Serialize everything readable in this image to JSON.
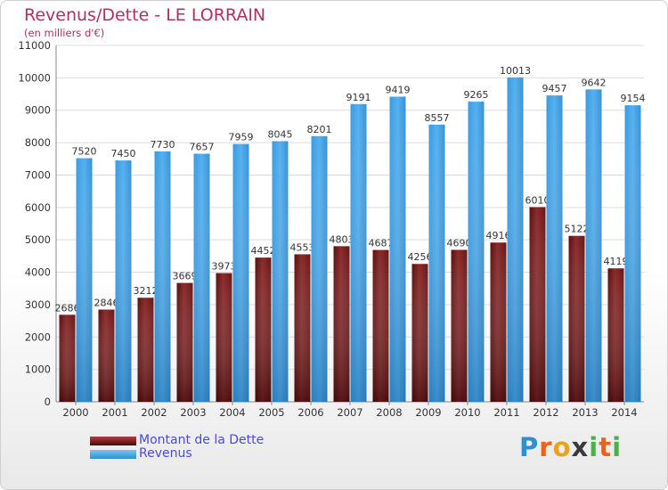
{
  "header": {
    "title": "Revenus/Dette - LE LORRAIN",
    "subtitle": "(en milliers d'€)"
  },
  "chart_data": {
    "type": "bar",
    "title": "Revenus/Dette - LE LORRAIN",
    "ylabel": "(en milliers d'€)",
    "xlabel": "",
    "categories": [
      "2000",
      "2001",
      "2002",
      "2003",
      "2004",
      "2005",
      "2006",
      "2007",
      "2008",
      "2009",
      "2010",
      "2011",
      "2012",
      "2013",
      "2014"
    ],
    "series": [
      {
        "name": "Montant de la Dette",
        "color": "#7a1a1a",
        "values": [
          2686,
          2846,
          3212,
          3669,
          3973,
          4452,
          4553,
          4803,
          4687,
          4256,
          4690,
          4916,
          6010,
          5122,
          4119
        ],
        "labels": [
          "2686",
          "2846",
          "3212",
          "3669",
          "3973",
          "4452",
          "4553",
          "4803",
          "4687",
          "4256",
          "4690",
          "4916",
          "6010",
          "5122",
          "4119"
        ]
      },
      {
        "name": "Revenus",
        "color": "#3f9fe0",
        "values": [
          7520,
          7450,
          7730,
          7657,
          7959,
          8045,
          8201,
          9191,
          9419,
          8557,
          9265,
          10013,
          9457,
          9642,
          9154
        ],
        "labels": [
          "7520",
          "7450",
          "7730",
          "7657",
          "7959",
          "8045",
          "8201",
          "9191",
          "9419",
          "8557",
          "9265",
          "10013",
          "9457",
          "9642",
          "9154"
        ]
      }
    ],
    "ylim": [
      0,
      11000
    ],
    "yticks": [
      0,
      1000,
      2000,
      3000,
      4000,
      5000,
      6000,
      7000,
      8000,
      9000,
      10000,
      11000
    ],
    "grid": true,
    "legend": "bottom-left"
  },
  "legend": {
    "items": [
      {
        "label": "Montant de la Dette",
        "color": "#6b1010"
      },
      {
        "label": "Revenus",
        "color": "#3f9fe0"
      }
    ]
  },
  "logo": {
    "letters": [
      "P",
      "r",
      "o",
      "x",
      "i",
      "t",
      "i"
    ],
    "colors": [
      "#2f8fd0",
      "#e8641e",
      "#e8a21e",
      "#3a3a3a",
      "#4ab04a",
      "#e8641e",
      "#4ab04a"
    ]
  }
}
